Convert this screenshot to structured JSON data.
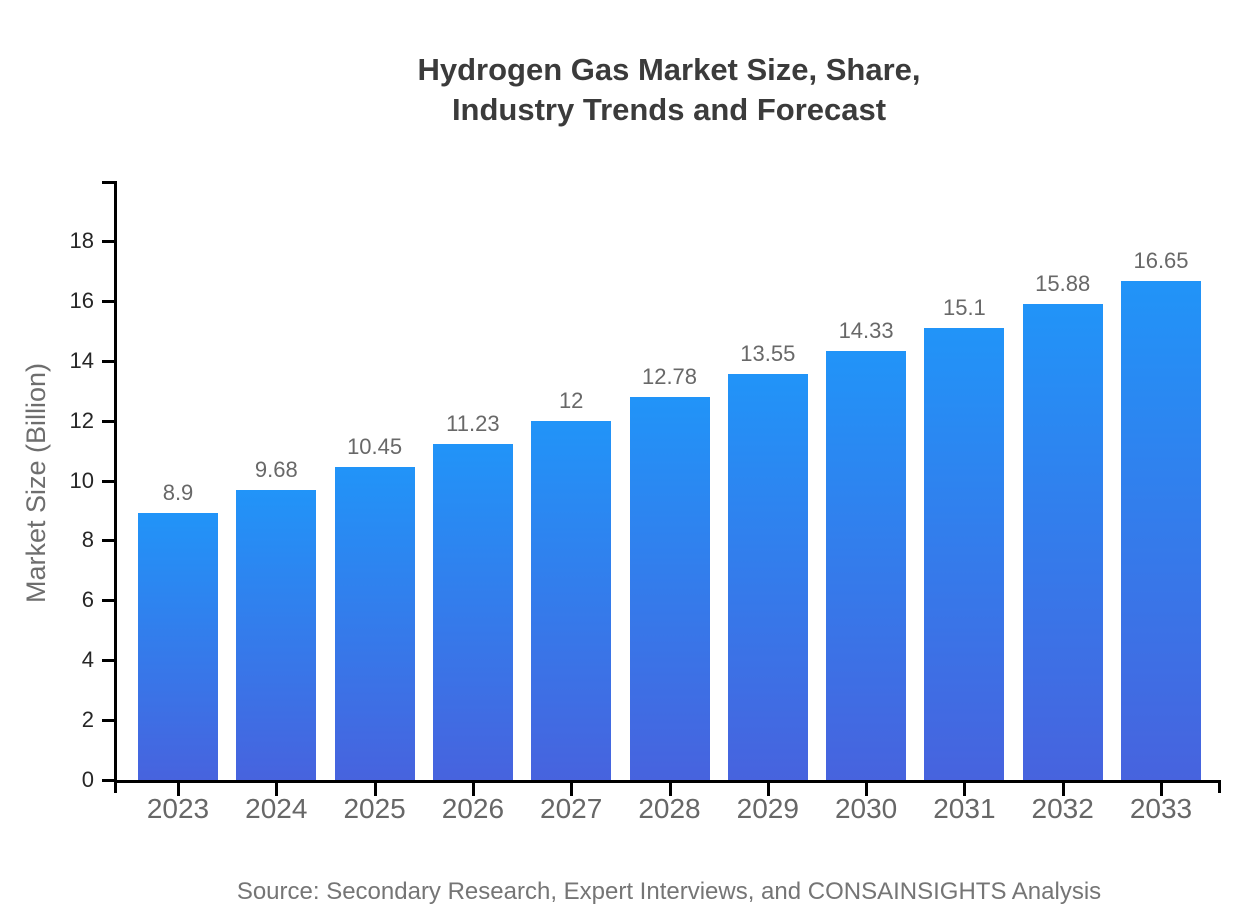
{
  "page": {
    "background_color": "#ffffff"
  },
  "chart_data": {
    "type": "bar",
    "title": "Hydrogen Gas Market Size, Share, Industry Trends and Forecast",
    "title_lines": [
      "Hydrogen Gas Market Size, Share,",
      "Industry Trends and Forecast"
    ],
    "xlabel": "",
    "ylabel": "Market Size (Billion)",
    "categories": [
      "2023",
      "2024",
      "2025",
      "2026",
      "2027",
      "2028",
      "2029",
      "2030",
      "2031",
      "2032",
      "2033"
    ],
    "values": [
      8.9,
      9.68,
      10.45,
      11.23,
      12,
      12.78,
      13.55,
      14.33,
      15.1,
      15.88,
      16.65
    ],
    "value_labels": [
      "8.9",
      "9.68",
      "10.45",
      "11.23",
      "12",
      "12.78",
      "13.55",
      "14.33",
      "15.1",
      "15.88",
      "16.65"
    ],
    "y_ticks": [
      0,
      2,
      4,
      6,
      8,
      10,
      12,
      14,
      16,
      18
    ],
    "ylim": [
      0,
      20
    ],
    "grid": false,
    "legend": null,
    "colors": {
      "bar_gradient_top": "#2194F8",
      "bar_gradient_bottom": "#4763DE",
      "axis": "#000000",
      "title": "#3b3b3b",
      "y_tick_label": "#262626",
      "x_tick_label": "#676767",
      "value_label": "#686868",
      "y_axis_label": "#6e6e6e",
      "source": "#757575"
    }
  },
  "source_note": "Source: Secondary Research, Expert Interviews, and CONSAINSIGHTS Analysis"
}
